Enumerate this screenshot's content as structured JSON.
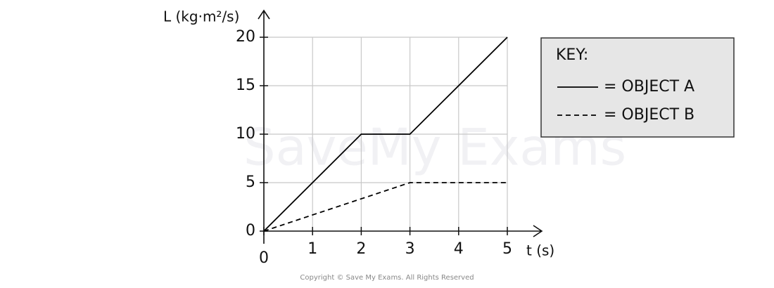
{
  "chart_data": {
    "type": "line",
    "y_label": "L (kg·m²/s)",
    "x_label": "t (s)",
    "xlim": [
      0,
      5
    ],
    "xticks": [
      0,
      1,
      2,
      3,
      4,
      5
    ],
    "ylim": [
      0,
      20
    ],
    "yticks": [
      0,
      5,
      10,
      15,
      20
    ],
    "grid": true,
    "legend_title": "KEY:",
    "legend_position": "right",
    "series": [
      {
        "name": "= OBJECT A",
        "color": "#000000",
        "dash": "solid",
        "x": [
          0,
          2,
          3,
          5
        ],
        "values": [
          0,
          10,
          10,
          20
        ]
      },
      {
        "name": "= OBJECT B",
        "color": "#000000",
        "dash": "dashed",
        "x": [
          0,
          3,
          5
        ],
        "values": [
          0,
          5,
          5
        ]
      }
    ],
    "watermark": "SaveMy Exams",
    "copyright": "Copyright © Save My Exams. All Rights Reserved"
  }
}
